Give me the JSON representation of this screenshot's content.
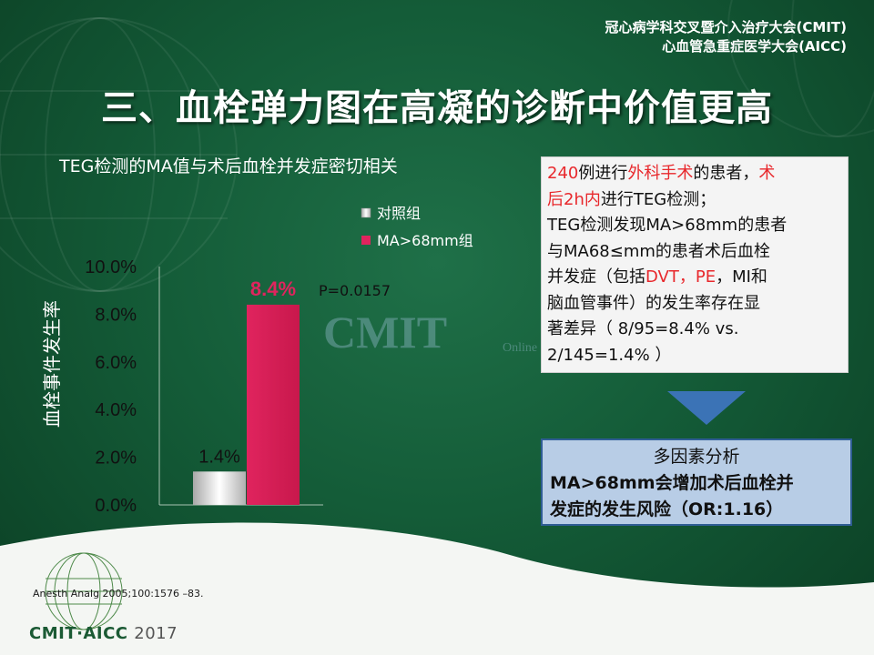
{
  "header": {
    "line1": "冠心病学科交叉暨介入治疗大会(CMIT)",
    "line2": "心血管急重症医学大会(AICC)"
  },
  "title": "三、血栓弹力图在高凝的诊断中价值更高",
  "watermark": "CMIT",
  "watermark_small": "Online",
  "chart_data": {
    "type": "bar",
    "title": "TEG检测的MA值与术后血栓并发症密切相关",
    "ylabel": "血栓事件发生率",
    "ylim": [
      0,
      10
    ],
    "yticks": [
      "0.0%",
      "2.0%",
      "4.0%",
      "6.0%",
      "8.0%",
      "10.0%"
    ],
    "ytick_values": [
      0,
      2,
      4,
      6,
      8,
      10
    ],
    "legend_position": "top-right",
    "series": [
      {
        "name": "对照组",
        "value": 1.4,
        "label": "1.4%",
        "color": "#d0d0d0"
      },
      {
        "name": "MA>68mm组",
        "value": 8.4,
        "label": "8.4%",
        "color": "#e0245e"
      }
    ],
    "annotation": "P=0.0157",
    "grid": false
  },
  "box1": {
    "l1a": "240",
    "l1b": "例进行",
    "l1c": "外科手术",
    "l1d": "的患者，",
    "l1e": "术",
    "l2a": "后2h内",
    "l2b": "进行TEG检测；",
    "l3": "TEG检测发现MA>68mm的患者",
    "l4": "与MA68≤mm的患者术后血栓",
    "l5a": "并发症（包括",
    "l5b": "DVT，PE",
    "l5c": "，MI和",
    "l6": "脑血管事件）的发生率存在显",
    "l7": "著差异（ 8/95=8.4% vs.",
    "l8": "2/145=1.4% ）"
  },
  "box2": {
    "heading": "多因素分析",
    "line1": "MA>68mm会增加术后血栓并",
    "line2": "发症的发生风险（OR:1.16）"
  },
  "citation": "Anesth Analg 2005;100:1576 –83.",
  "logo": {
    "text": "CMIT·AICC",
    "year": "2017"
  },
  "colors": {
    "accent_red": "#e8282c",
    "box_blue": "#b8cde6",
    "arrow_blue": "#3b73b6"
  }
}
